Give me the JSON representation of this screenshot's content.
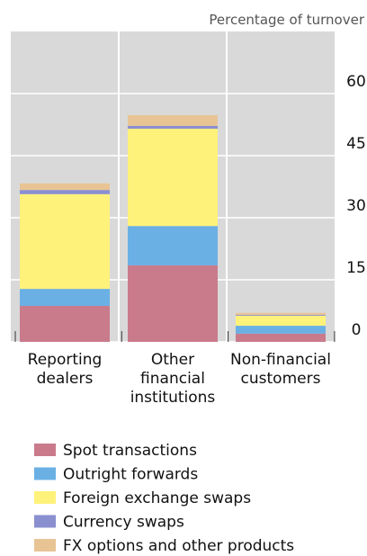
{
  "chart_data": {
    "type": "stacked_bar",
    "subtitle": "Percentage of turnover",
    "categories": [
      "Reporting dealers",
      "Other financial institutions",
      "Non-financial customers"
    ],
    "series": [
      {
        "name": "Spot transactions",
        "color": "#c97b8c",
        "values": [
          8.7,
          18.5,
          2
        ]
      },
      {
        "name": "Outright forwards",
        "color": "#6ab0e4",
        "values": [
          4.1,
          9.5,
          1.9
        ]
      },
      {
        "name": "Foreign exchange swaps",
        "color": "#fff27a",
        "values": [
          22.9,
          23.5,
          2.4
        ]
      },
      {
        "name": "Currency swaps",
        "color": "#8a8fd0",
        "values": [
          1,
          0.7,
          0.2
        ]
      },
      {
        "name": "FX options and other products",
        "color": "#e8c495",
        "values": [
          1.6,
          2.6,
          0.5
        ]
      }
    ],
    "ylim": [
      0,
      75
    ],
    "yticks": [
      0,
      15,
      30,
      45,
      60
    ],
    "grid": true
  }
}
